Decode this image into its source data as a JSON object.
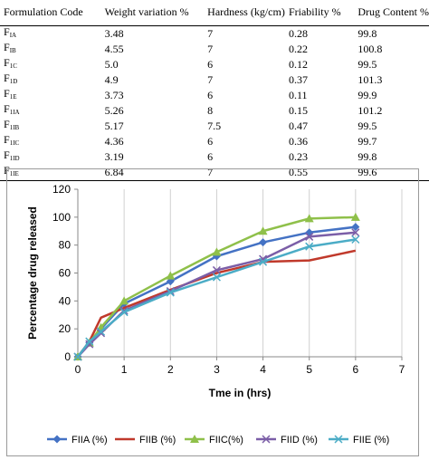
{
  "table": {
    "headers": [
      "Formulation Code",
      "Weight variation %",
      "Hardness (kg/cm)",
      "Friability %",
      "Drug Content %"
    ],
    "rows": [
      {
        "code_main": "F",
        "code_sub": "IA",
        "weight": "3.48",
        "hardness": "7",
        "friability": "0.28",
        "drug": "99.8"
      },
      {
        "code_main": "F",
        "code_sub": "IB",
        "weight": "4.55",
        "hardness": "7",
        "friability": "0.22",
        "drug": "100.8"
      },
      {
        "code_main": "F",
        "code_sub": "1C",
        "weight": "5.0",
        "hardness": "6",
        "friability": "0.12",
        "drug": "99.5"
      },
      {
        "code_main": "F",
        "code_sub": "1D",
        "weight": "4.9",
        "hardness": "7",
        "friability": "0.37",
        "drug": "101.3"
      },
      {
        "code_main": "F",
        "code_sub": "1E",
        "weight": "3.73",
        "hardness": "6",
        "friability": "0.11",
        "drug": "99.9"
      },
      {
        "code_main": "F",
        "code_sub": "1IA",
        "weight": "5.26",
        "hardness": "8",
        "friability": "0.15",
        "drug": "101.2"
      },
      {
        "code_main": "F",
        "code_sub": "1IB",
        "weight": "5.17",
        "hardness": "7.5",
        "friability": "0.47",
        "drug": "99.5"
      },
      {
        "code_main": "F",
        "code_sub": "1IC",
        "weight": "4.36",
        "hardness": "6",
        "friability": "0.36",
        "drug": "99.7"
      },
      {
        "code_main": "F",
        "code_sub": "1ID",
        "weight": "3.19",
        "hardness": "6",
        "friability": "0.23",
        "drug": "99.8"
      },
      {
        "code_main": "F",
        "code_sub": "1IE",
        "weight": "6.84",
        "hardness": "7",
        "friability": "0.55",
        "drug": "99.6"
      }
    ]
  },
  "chart_data": {
    "type": "line",
    "xlabel": "Tme in (hrs)",
    "ylabel": "Percentage drug released",
    "xlim": [
      0,
      7
    ],
    "ylim": [
      0,
      120
    ],
    "xticks": [
      0,
      1,
      2,
      3,
      4,
      5,
      6,
      7
    ],
    "yticks": [
      0,
      20,
      40,
      60,
      80,
      100,
      120
    ],
    "grid": "vertical",
    "legend_position": "bottom",
    "x": [
      0,
      0.25,
      0.5,
      1,
      2,
      3,
      4,
      5,
      6
    ],
    "series": [
      {
        "name": "FIIA (%)",
        "color": "#4472c4",
        "marker": "diamond",
        "values": [
          0,
          10,
          20,
          38,
          54,
          72,
          82,
          89,
          93
        ]
      },
      {
        "name": "FIIB (%)",
        "color": "#c0392b",
        "marker": "none",
        "values": [
          0,
          11,
          28,
          35,
          48,
          60,
          68,
          69,
          76
        ]
      },
      {
        "name": "FIIC(%)",
        "color": "#8fc04a",
        "marker": "triangle",
        "values": [
          0,
          10,
          21,
          40,
          58,
          75,
          90,
          99,
          100
        ]
      },
      {
        "name": "FIID (%)",
        "color": "#7b5ea7",
        "marker": "x",
        "values": [
          0,
          9,
          17,
          33,
          47,
          62,
          70,
          86,
          89
        ]
      },
      {
        "name": "FIIE (%)",
        "color": "#4bacc6",
        "marker": "x",
        "values": [
          0,
          11,
          18,
          32,
          46,
          57,
          68,
          79,
          84
        ]
      }
    ]
  }
}
